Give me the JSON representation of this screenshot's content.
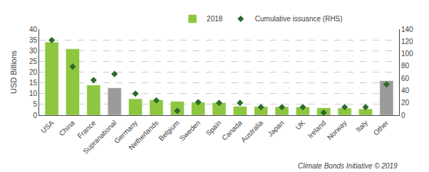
{
  "chart_data": {
    "type": "bar",
    "ylabel": "USD Billions",
    "annotation": "Climate Bonds Initiative © 2019",
    "categories": [
      "USA",
      "China",
      "France",
      "Supranational",
      "Germany",
      "Netherlands",
      "Belgium",
      "Sweden",
      "Spain",
      "Canada",
      "Australia",
      "Japan",
      "UK",
      "Ireland",
      "Norway",
      "Italy",
      "Other"
    ],
    "series": [
      {
        "name": "2018",
        "type": "bar",
        "colors": [
          "#8DC63F",
          "#8DC63F",
          "#8DC63F",
          "#9B9B9B",
          "#8DC63F",
          "#8DC63F",
          "#8DC63F",
          "#8DC63F",
          "#8DC63F",
          "#8DC63F",
          "#8DC63F",
          "#8DC63F",
          "#8DC63F",
          "#8DC63F",
          "#8DC63F",
          "#8DC63F",
          "#9B9B9B"
        ],
        "values": [
          34.0,
          30.8,
          14.0,
          12.7,
          7.6,
          7.1,
          6.4,
          6.0,
          5.8,
          4.1,
          4.0,
          3.9,
          3.8,
          3.4,
          3.3,
          2.9,
          16.0
        ]
      },
      {
        "name": "Cumulative issuance (RHS)",
        "type": "scatter",
        "axis": "y2",
        "color": "#2D6A2D",
        "marker": "diamond",
        "values": [
          122,
          79,
          57,
          67,
          35,
          24,
          7,
          21,
          20,
          20,
          13,
          13,
          13,
          4,
          13,
          13,
          50
        ]
      }
    ],
    "ylim": [
      0,
      40
    ],
    "yticks": [
      0,
      5,
      10,
      15,
      20,
      25,
      30,
      35,
      40
    ],
    "y2lim": [
      0,
      140
    ],
    "y2ticks": [
      0,
      20,
      40,
      60,
      80,
      100,
      120,
      140
    ],
    "grid": true,
    "legend": "top"
  }
}
